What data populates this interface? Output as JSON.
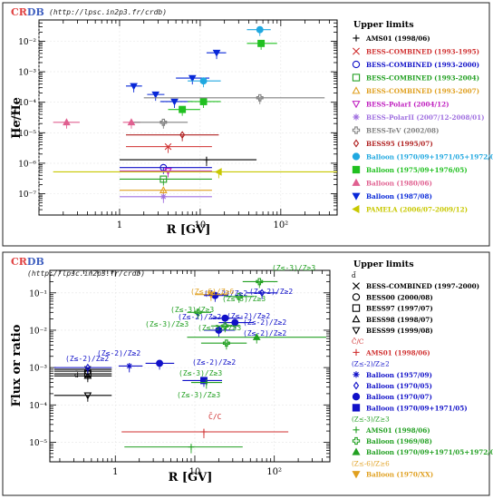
{
  "colors": {
    "black": "#000000",
    "gray": "#808080",
    "red": "#d03030",
    "blue": "#1010c8",
    "green": "#22a022",
    "orange": "#e0a020",
    "magenta": "#c020c0",
    "violet": "#a070e0",
    "brown": "#b02020",
    "cyan": "#20a8e0",
    "lime": "#20c020",
    "pink": "#e06090",
    "navy": "#0828d8",
    "olive": "#c8c800",
    "crdb_red": "#e04040",
    "crdb_blue": "#4060c0"
  },
  "charts": [
    {
      "id": "top",
      "logo": {
        "c": "C",
        "r": "R",
        "db": "DB"
      },
      "url": "(http://lpsc.in2p3.fr/crdb)",
      "xlabel": "R [GV]",
      "ylabel": "He/He",
      "x_ticks": [
        "1",
        "10",
        "10²"
      ],
      "y_ticks": [
        "10⁻⁷",
        "10⁻⁶",
        "10⁻⁵",
        "10⁻⁴",
        "10⁻³",
        "10⁻²"
      ],
      "legend_title": "Upper limits",
      "legend": [
        {
          "text": "AMS01 (1998/06)",
          "color": "#000000",
          "marker": "plus"
        },
        {
          "text": "BESS-COMBINED (1993-1995)",
          "color": "#d03030",
          "marker": "x"
        },
        {
          "text": "BESS-COMBINED (1993-2000)",
          "color": "#1010c8",
          "marker": "circle"
        },
        {
          "text": "BESS-COMBINED (1993-2004)",
          "color": "#22a022",
          "marker": "square"
        },
        {
          "text": "BESS-COMBINED (1993-2007)",
          "color": "#e0a020",
          "marker": "triangle"
        },
        {
          "text": "BESS-PolarI (2004/12)",
          "color": "#c020c0",
          "marker": "tri-down"
        },
        {
          "text": "BESS-PolarII (2007/12-2008/01)",
          "color": "#a070e0",
          "marker": "star"
        },
        {
          "text": "BESS-TeV (2002/08)",
          "color": "#808080",
          "marker": "cross"
        },
        {
          "text": "BESS95 (1995/07)",
          "color": "#b02020",
          "marker": "diamond"
        },
        {
          "text": "Balloon (1970/09+1971/05+1972/0",
          "color": "#20a8e0",
          "marker": "fcircle"
        },
        {
          "text": "Balloon (1975/09+1976/05)",
          "color": "#20c020",
          "marker": "fsquare"
        },
        {
          "text": "Balloon (1980/06)",
          "color": "#e06090",
          "marker": "ftriangle"
        },
        {
          "text": "Balloon (1987/08)",
          "color": "#0828d8",
          "marker": "ftri-down"
        },
        {
          "text": "PAMELA (2006/07-2009/12)",
          "color": "#c8c800",
          "marker": "fleft"
        }
      ]
    },
    {
      "id": "bottom",
      "logo": {
        "c": "C",
        "r": "R",
        "db": "DB"
      },
      "url": "(http://lpsc.in2p3.fr/crdb)",
      "xlabel": "R [GV]",
      "ylabel": "Flux or ratio",
      "x_ticks": [
        "1",
        "10",
        "10²"
      ],
      "y_ticks": [
        "10⁻⁵",
        "10⁻⁴",
        "10⁻³",
        "10⁻²",
        "10⁻¹"
      ],
      "legend_title": "Upper limits",
      "legend": [
        {
          "text": "d̄",
          "color": "#000000",
          "marker": "none",
          "group": true
        },
        {
          "text": "BESS-COMBINED (1997-2000)",
          "color": "#000000",
          "marker": "x"
        },
        {
          "text": "BESS00 (2000/08)",
          "color": "#000000",
          "marker": "circle"
        },
        {
          "text": "BESS97 (1997/07)",
          "color": "#000000",
          "marker": "square"
        },
        {
          "text": "BESS98 (1998/07)",
          "color": "#000000",
          "marker": "triangle"
        },
        {
          "text": "BESS99 (1999/08)",
          "color": "#000000",
          "marker": "tri-down"
        },
        {
          "text": "C̄/C",
          "color": "#d03030",
          "marker": "none",
          "group": true
        },
        {
          "text": "AMS01 (1998/06)",
          "color": "#d03030",
          "marker": "plus"
        },
        {
          "text": "(Z≤-2)/Z≥2",
          "color": "#1010c8",
          "marker": "none",
          "group": true
        },
        {
          "text": "Balloon (1957/09)",
          "color": "#1010c8",
          "marker": "star"
        },
        {
          "text": "Balloon (1970/05)",
          "color": "#1010c8",
          "marker": "diamond"
        },
        {
          "text": "Balloon (1970/07)",
          "color": "#1010c8",
          "marker": "fcircle"
        },
        {
          "text": "Balloon (1970/09+1971/05)",
          "color": "#1010c8",
          "marker": "fsquare"
        },
        {
          "text": "(Z≤-3)/Z≥3",
          "color": "#22a022",
          "marker": "none",
          "group": true
        },
        {
          "text": "AMS01 (1998/06)",
          "color": "#22a022",
          "marker": "plus"
        },
        {
          "text": "Balloon (1969/08)",
          "color": "#22a022",
          "marker": "cross"
        },
        {
          "text": "Balloon (1970/09+1971/05+1972/0",
          "color": "#22a022",
          "marker": "ftriangle"
        },
        {
          "text": "(Z≤-6)/Z≥6",
          "color": "#e0a020",
          "marker": "none",
          "group": true
        },
        {
          "text": "Balloon (1970/XX)",
          "color": "#e0a020",
          "marker": "ftri-down"
        }
      ],
      "annotations": [
        {
          "text": "(Z≤-3)/Z≥3",
          "color": "#22a022"
        },
        {
          "text": "(Z≤-2)/Z≥2",
          "color": "#1010c8"
        },
        {
          "text": "(Z≤-6)/Z≥6",
          "color": "#e0a020"
        },
        {
          "text": "(Z≤-2)/Z≥2",
          "color": "#1010c8"
        },
        {
          "text": "(Z≤-3)/Z≥3",
          "color": "#22a022"
        },
        {
          "text": "(Z≤-3)/Z≥3",
          "color": "#22a022"
        },
        {
          "text": "(Z≤-2)/Z≥2",
          "color": "#1010c8"
        },
        {
          "text": "(Z≤-2)/Z≥2",
          "color": "#1010c8"
        },
        {
          "text": "(Z≤-3)/Z≥3",
          "color": "#22a022"
        },
        {
          "text": "(Z≤-3)/Z≥3",
          "color": "#22a022"
        },
        {
          "text": "(Z≤-2)/Z≥2",
          "color": "#1010c8"
        },
        {
          "text": "(Z≤-2)/Z≥2",
          "color": "#1010c8"
        },
        {
          "text": "(Z≤-2)/Z≥2",
          "color": "#1010c8"
        },
        {
          "text": "(Z≤-2)/Z≥2",
          "color": "#1010c8"
        },
        {
          "text": "(Z≤-3)/Z≥3",
          "color": "#22a022"
        },
        {
          "text": "(Z≤-3)/Z≥3",
          "color": "#22a022"
        },
        {
          "text": "(Z≤-2)/Z≥2",
          "color": "#1010c8"
        },
        {
          "text": "d̄",
          "color": "#000000"
        },
        {
          "text": "C̄/C",
          "color": "#d03030"
        }
      ]
    }
  ],
  "chart_data": [
    {
      "type": "scatter",
      "xscale": "log",
      "yscale": "log",
      "xlim": [
        0.1,
        500
      ],
      "ylim": [
        2e-08,
        0.05
      ],
      "xlabel": "R [GV]",
      "ylabel": "He/He",
      "legend_position": "right",
      "points": [
        {
          "x": 55,
          "xerr": [
            38,
            75
          ],
          "y": 0.024,
          "color": "#20a8e0",
          "marker": "fcircle"
        },
        {
          "x": 57,
          "xerr": [
            38,
            90
          ],
          "y": 0.0085,
          "color": "#20c020",
          "marker": "fsquare"
        },
        {
          "x": 16,
          "xerr": [
            12,
            21
          ],
          "y": 0.0042,
          "color": "#0828d8",
          "marker": "ftri-down"
        },
        {
          "x": 8,
          "xerr": [
            5,
            13
          ],
          "y": 0.00062,
          "color": "#0828d8",
          "marker": "ftri-down"
        },
        {
          "x": 11,
          "xerr": [
            7,
            18
          ],
          "y": 0.0005,
          "color": "#20a8e0",
          "marker": "fcircle"
        },
        {
          "x": 1.5,
          "xerr": [
            1.2,
            1.9
          ],
          "y": 0.00034,
          "color": "#0828d8",
          "marker": "ftri-down"
        },
        {
          "x": 2.8,
          "xerr": [
            2.2,
            3.6
          ],
          "y": 0.00018,
          "color": "#0828d8",
          "marker": "ftri-down"
        },
        {
          "x": 4.8,
          "xerr": [
            3.2,
            8
          ],
          "y": 0.000105,
          "color": "#0828d8",
          "marker": "ftri-down"
        },
        {
          "x": 11,
          "xerr": [
            7,
            18
          ],
          "y": 0.000105,
          "color": "#20c020",
          "marker": "fsquare"
        },
        {
          "x": 55,
          "xerr": [
            2,
            350
          ],
          "y": 0.00014,
          "color": "#808080",
          "marker": "cross"
        },
        {
          "x": 6,
          "xerr": [
            4,
            10
          ],
          "y": 5.8e-05,
          "color": "#20c020",
          "marker": "fsquare"
        },
        {
          "x": 0.22,
          "xerr": [
            0.15,
            0.32
          ],
          "y": 2.2e-05,
          "color": "#e06090",
          "marker": "ftriangle"
        },
        {
          "x": 1.4,
          "xerr": [
            1.1,
            1.8
          ],
          "y": 2.2e-05,
          "color": "#e06090",
          "marker": "ftriangle"
        },
        {
          "x": 3.5,
          "xerr": [
            1.5,
            7
          ],
          "y": 2.2e-05,
          "color": "#808080",
          "marker": "cross"
        },
        {
          "x": 6,
          "xerr": [
            1.2,
            17
          ],
          "y": 8.5e-06,
          "color": "#b02020",
          "marker": "diamond"
        },
        {
          "x": 4,
          "xerr": [
            1.2,
            14
          ],
          "y": 3.5e-06,
          "color": "#d03030",
          "marker": "x"
        },
        {
          "x": 12,
          "xerr": [
            1,
            50
          ],
          "y": 1.3e-06,
          "color": "#000000",
          "marker": "plus"
        },
        {
          "x": 3.5,
          "xerr": [
            1,
            14
          ],
          "y": 7.2e-07,
          "color": "#1010c8",
          "marker": "circle"
        },
        {
          "x": 4,
          "xerr": [
            1,
            14
          ],
          "y": 5.6e-07,
          "color": "#c020c0",
          "marker": "tri-down"
        },
        {
          "x": 17,
          "xerr": [
            0.15,
            500
          ],
          "y": 5.2e-07,
          "color": "#c8c800",
          "marker": "fleft"
        },
        {
          "x": 3.5,
          "xerr": [
            1,
            14
          ],
          "y": 3e-07,
          "color": "#22a022",
          "marker": "square"
        },
        {
          "x": 3.5,
          "xerr": [
            1,
            14
          ],
          "y": 1.3e-07,
          "color": "#e0a020",
          "marker": "triangle"
        },
        {
          "x": 3.5,
          "xerr": [
            1,
            14
          ],
          "y": 8e-08,
          "color": "#a070e0",
          "marker": "star"
        }
      ]
    },
    {
      "type": "scatter",
      "xscale": "log",
      "yscale": "log",
      "xlim": [
        0.15,
        500
      ],
      "ylim": [
        3e-06,
        0.4
      ],
      "xlabel": "R [GV]",
      "ylabel": "Flux or ratio",
      "legend_position": "right",
      "points": [
        {
          "x": 0.45,
          "xerr": [
            0.17,
            0.9
          ],
          "y": 0.0009,
          "color": "#000000",
          "marker": "x"
        },
        {
          "x": 0.45,
          "xerr": [
            0.17,
            0.9
          ],
          "y": 0.0008,
          "color": "#000000",
          "marker": "circle"
        },
        {
          "x": 0.45,
          "xerr": [
            0.17,
            0.9
          ],
          "y": 0.00068,
          "color": "#000000",
          "marker": "square"
        },
        {
          "x": 0.45,
          "xerr": [
            0.17,
            0.9
          ],
          "y": 0.0006,
          "color": "#000000",
          "marker": "triangle"
        },
        {
          "x": 0.45,
          "xerr": [
            0.17,
            0.9
          ],
          "y": 0.00018,
          "color": "#000000",
          "marker": "tri-down"
        },
        {
          "x": 13,
          "xerr": [
            1.2,
            150
          ],
          "y": 1.9e-05,
          "color": "#d03030",
          "marker": "plus"
        },
        {
          "x": 0.45,
          "xerr": [
            0.17,
            0.9
          ],
          "y": 0.001,
          "color": "#1010c8",
          "marker": "diamond"
        },
        {
          "x": 1.5,
          "xerr": [
            1.1,
            2.2
          ],
          "y": 0.0011,
          "color": "#1010c8",
          "marker": "star"
        },
        {
          "x": 3.6,
          "xerr": [
            2.4,
            5.5
          ],
          "y": 0.0013,
          "color": "#1010c8",
          "marker": "fcircle"
        },
        {
          "x": 13,
          "xerr": [
            7,
            22
          ],
          "y": 0.00045,
          "color": "#1010c8",
          "marker": "fsquare"
        },
        {
          "x": 18,
          "xerr": [
            13,
            26
          ],
          "y": 0.085,
          "color": "#1010c8",
          "marker": "fcircle"
        },
        {
          "x": 24,
          "xerr": [
            16,
            40
          ],
          "y": 0.021,
          "color": "#1010c8",
          "marker": "fcircle"
        },
        {
          "x": 32,
          "xerr": [
            20,
            55
          ],
          "y": 0.016,
          "color": "#1010c8",
          "marker": "fcircle"
        },
        {
          "x": 70,
          "xerr": [
            45,
            110
          ],
          "y": 0.1,
          "color": "#1010c8",
          "marker": "diamond"
        },
        {
          "x": 20,
          "xerr": [
            13,
            32
          ],
          "y": 0.01,
          "color": "#1010c8",
          "marker": "fcircle"
        },
        {
          "x": 16,
          "xerr": [
            10,
            26
          ],
          "y": 0.09,
          "color": "#e0a020",
          "marker": "ftri-down"
        },
        {
          "x": 24,
          "xerr": [
            16,
            36
          ],
          "y": 0.013,
          "color": "#22a022",
          "marker": "cross"
        },
        {
          "x": 60,
          "xerr": [
            8,
            450
          ],
          "y": 0.0065,
          "color": "#22a022",
          "marker": "ftriangle"
        },
        {
          "x": 25,
          "xerr": [
            12,
            45
          ],
          "y": 0.0045,
          "color": "#22a022",
          "marker": "cross"
        },
        {
          "x": 65,
          "xerr": [
            40,
            110
          ],
          "y": 0.2,
          "color": "#22a022",
          "marker": "cross"
        },
        {
          "x": 36,
          "xerr": [
            24,
            55
          ],
          "y": 0.08,
          "color": "#22a022",
          "marker": "cross"
        },
        {
          "x": 11,
          "xerr": [
            8,
            16
          ],
          "y": 0.03,
          "color": "#22a022",
          "marker": "cross"
        },
        {
          "x": 14,
          "xerr": [
            9,
            22
          ],
          "y": 0.0004,
          "color": "#22a022",
          "marker": "plus"
        },
        {
          "x": 9,
          "xerr": [
            1.3,
            40
          ],
          "y": 7.5e-06,
          "color": "#22a022",
          "marker": "plus"
        }
      ]
    }
  ]
}
